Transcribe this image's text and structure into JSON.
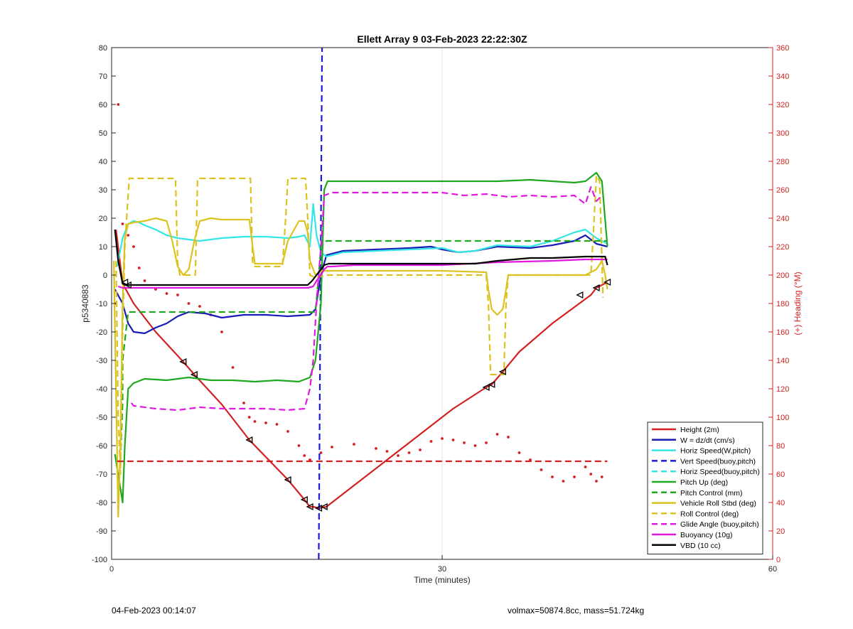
{
  "chart_data": {
    "type": "line",
    "title": "Ellett Array 9 03-Feb-2023 22:22:30Z",
    "xlabel": "Time (minutes)",
    "ylabel": "p5340883",
    "y2label": "(+) Heading (°M)",
    "xlim": [
      0,
      60
    ],
    "ylim": [
      -100,
      80
    ],
    "y2lim": [
      0,
      360
    ],
    "xticks": [
      "0",
      "30",
      "60"
    ],
    "yticks": [
      "-100",
      "-90",
      "-80",
      "-70",
      "-60",
      "-50",
      "-40",
      "-30",
      "-20",
      "-10",
      "0",
      "10",
      "20",
      "30",
      "40",
      "50",
      "60",
      "70",
      "80"
    ],
    "y2ticks": [
      "0",
      "20",
      "40",
      "60",
      "80",
      "100",
      "120",
      "140",
      "160",
      "180",
      "200",
      "220",
      "240",
      "260",
      "280",
      "300",
      "320",
      "340",
      "360"
    ],
    "grid": true,
    "legend_position": "bottom-right",
    "series": [
      {
        "name": "Height (2m)",
        "color": "#d42020",
        "style": "solid",
        "axis": "left",
        "x": [
          0.4,
          1.0,
          2.0,
          4.0,
          6.5,
          7.5,
          10.0,
          12.5,
          14.0,
          16.0,
          17.5,
          18.0,
          18.3,
          18.8,
          19.5,
          22.0,
          25.0,
          28.0,
          31.0,
          34.0,
          34.5,
          35.5,
          37.0,
          40.0,
          43.5,
          44.0,
          45.0
        ],
        "y": [
          16.0,
          -3.0,
          -10.0,
          -20.0,
          -30.5,
          -35.0,
          -45.5,
          -58.0,
          -64.0,
          -72.0,
          -79.0,
          -81.5,
          -81.5,
          -82.0,
          -81.5,
          -74.0,
          -65.0,
          -56.0,
          -47.0,
          -39.5,
          -38.5,
          -34.0,
          -27.0,
          -17.0,
          -7.0,
          -4.5,
          -2.5
        ]
      },
      {
        "name": "W = dz/dt (cm/s)",
        "color": "#1a1ab8",
        "style": "solid",
        "axis": "left",
        "x": [
          0.3,
          1.0,
          1.5,
          2.0,
          3.0,
          4.0,
          5.0,
          6.0,
          7.0,
          8.5,
          10.0,
          12.0,
          14.0,
          16.0,
          18.0,
          18.5,
          19.0,
          19.5,
          21.0,
          24.0,
          27.0,
          29.0,
          30.0,
          31.5,
          33.0,
          35.0,
          38.0,
          40.0,
          42.0,
          43.0,
          44.0,
          45.0
        ],
        "y": [
          -5.0,
          -10.0,
          -17.0,
          -20.0,
          -20.5,
          -18.5,
          -17.0,
          -14.5,
          -13.0,
          -13.5,
          -15.0,
          -14.0,
          -14.0,
          -14.5,
          -14.0,
          -12.0,
          0.0,
          7.0,
          8.5,
          9.0,
          9.5,
          10.0,
          9.0,
          8.0,
          8.5,
          10.0,
          9.5,
          10.5,
          12.0,
          14.0,
          11.0,
          10.0
        ]
      },
      {
        "name": "Horiz Speed(W,pitch)",
        "color": "#33e5e5",
        "style": "solid",
        "axis": "left",
        "x": [
          0.5,
          1.0,
          1.5,
          2.0,
          2.5,
          3.0,
          4.0,
          5.0,
          6.0,
          7.0,
          8.0,
          10.0,
          12.0,
          14.0,
          16.0,
          17.0,
          17.5,
          18.0,
          18.3,
          18.6,
          19.0,
          19.5,
          21.0,
          24.0,
          27.0,
          30.0,
          31.5,
          33.0,
          35.0,
          38.0,
          40.0,
          42.0,
          43.0,
          44.0,
          45.0
        ],
        "y": [
          3.0,
          13.0,
          18.0,
          19.0,
          18.5,
          17.5,
          16.0,
          14.0,
          13.0,
          12.5,
          12.0,
          13.0,
          13.5,
          13.5,
          13.0,
          13.5,
          14.0,
          10.0,
          25.0,
          14.0,
          8.0,
          6.5,
          8.0,
          8.5,
          9.0,
          9.5,
          8.0,
          8.5,
          10.5,
          10.0,
          12.0,
          15.0,
          16.0,
          13.0,
          11.0
        ]
      },
      {
        "name": "Vert Speed(buoy,pitch)",
        "color": "#1a1ad8",
        "style": "dashed",
        "axis": "left",
        "x": [
          18.8,
          19.1
        ],
        "y": [
          -100.0,
          80.0
        ]
      },
      {
        "name": "Horiz Speed(buoy,pitch)",
        "color": "#33e5e5",
        "style": "dashed",
        "axis": "left",
        "x": [],
        "y": []
      },
      {
        "name": "Pitch Up (deg)",
        "color": "#1fa81f",
        "style": "solid",
        "axis": "left",
        "x": [
          0.3,
          0.8,
          1.0,
          1.2,
          1.5,
          2.0,
          3.0,
          5.0,
          7.0,
          9.0,
          11.0,
          13.0,
          15.0,
          17.0,
          18.0,
          18.5,
          19.0,
          19.3,
          19.6,
          21.0,
          25.0,
          30.0,
          35.0,
          38.0,
          40.0,
          42.0,
          43.0,
          44.0,
          44.5,
          45.0
        ],
        "y": [
          -63.0,
          -75.0,
          -80.0,
          -60.0,
          -40.0,
          -38.0,
          -36.5,
          -37.0,
          -36.0,
          -37.0,
          -37.0,
          -37.5,
          -37.0,
          -37.5,
          -36.0,
          -30.0,
          -10.0,
          30.0,
          33.0,
          33.0,
          33.0,
          33.0,
          33.0,
          33.5,
          33.0,
          32.5,
          33.0,
          36.0,
          33.0,
          10.0
        ]
      },
      {
        "name": "Pitch Control (mm)",
        "color": "#1fa81f",
        "style": "dashed",
        "axis": "left",
        "x": [
          0.8,
          1.0,
          1.0,
          1.5,
          10.0,
          18.0,
          18.5,
          18.8,
          19.0,
          19.5,
          30.0,
          44.5,
          45.0
        ],
        "y": [
          -65.0,
          -45.0,
          -30.0,
          -13.0,
          -13.0,
          -13.0,
          -13.0,
          0.0,
          10.0,
          12.0,
          12.0,
          12.0,
          12.0
        ]
      },
      {
        "name": "Vehicle Roll Stbd (deg)",
        "color": "#dcc21f",
        "style": "solid",
        "axis": "left",
        "x": [
          0.2,
          0.4,
          0.6,
          0.8,
          1.0,
          1.2,
          1.5,
          2.0,
          3.0,
          4.0,
          5.0,
          5.5,
          6.0,
          6.5,
          7.0,
          7.5,
          8.0,
          9.0,
          10.0,
          12.5,
          12.8,
          13.0,
          15.0,
          15.5,
          16.0,
          17.0,
          17.5,
          17.8,
          18.0,
          18.5,
          19.0,
          21.0,
          25.0,
          30.0,
          34.0,
          34.2,
          34.5,
          35.0,
          35.5,
          35.8,
          36.0,
          38.0,
          40.0,
          43.0,
          44.0,
          44.5,
          44.8,
          45.0
        ],
        "y": [
          5.0,
          -40.0,
          -85.0,
          -60.0,
          -10.0,
          13.0,
          18.0,
          18.5,
          19.0,
          20.0,
          19.0,
          12.0,
          3.0,
          0.0,
          2.0,
          12.0,
          19.0,
          20.0,
          19.5,
          19.5,
          10.0,
          4.0,
          4.0,
          4.0,
          12.0,
          19.0,
          19.0,
          15.0,
          5.0,
          0.0,
          1.5,
          1.5,
          1.5,
          1.5,
          1.0,
          -5.0,
          -12.0,
          -14.0,
          -12.0,
          -5.0,
          0.0,
          0.0,
          0.0,
          0.0,
          2.0,
          5.0,
          0.0,
          -5.0
        ]
      },
      {
        "name": "Roll Control (deg)",
        "color": "#dcc21f",
        "style": "dashed",
        "axis": "left",
        "x": [
          0.4,
          0.6,
          0.8,
          1.0,
          1.2,
          1.6,
          2.2,
          4.0,
          5.8,
          6.0,
          6.2,
          7.0,
          7.6,
          7.8,
          10.0,
          12.6,
          12.8,
          13.0,
          15.5,
          15.8,
          16.0,
          17.0,
          17.6,
          17.8,
          18.0,
          18.5,
          19.5,
          30.0,
          34.0,
          34.2,
          34.4,
          35.6,
          35.8,
          36.0,
          43.5,
          43.8,
          44.0,
          44.3,
          44.6
        ],
        "y": [
          5.0,
          -50.0,
          -70.0,
          -20.0,
          10.0,
          34.0,
          34.0,
          34.0,
          34.0,
          4.0,
          0.0,
          0.0,
          0.0,
          34.0,
          34.0,
          34.0,
          4.0,
          3.0,
          3.0,
          20.0,
          34.0,
          34.0,
          34.0,
          20.0,
          0.0,
          -1.0,
          0.0,
          0.0,
          0.0,
          -10.0,
          -35.0,
          -35.0,
          -10.0,
          0.0,
          0.0,
          20.0,
          35.0,
          33.0,
          -8.0
        ]
      },
      {
        "name": "Glide Angle (buoy,pitch)",
        "color": "#e018e0",
        "style": "dashed",
        "axis": "left",
        "x": [
          1.8,
          2.0,
          4.0,
          6.0,
          8.0,
          10.0,
          12.0,
          14.0,
          16.0,
          17.5,
          18.0,
          18.3,
          18.6,
          19.0,
          19.3,
          20.0,
          25.0,
          30.0,
          32.0,
          34.0,
          36.0,
          38.0,
          40.0,
          42.0,
          43.0,
          43.5,
          44.0,
          44.5
        ],
        "y": [
          -45.0,
          -46.0,
          -47.0,
          -47.5,
          -46.5,
          -47.0,
          -47.0,
          -47.0,
          -47.5,
          -47.0,
          -40.0,
          -30.0,
          -10.0,
          10.0,
          28.0,
          29.0,
          29.0,
          29.0,
          28.0,
          28.5,
          27.5,
          28.0,
          27.5,
          28.0,
          25.0,
          31.0,
          26.0,
          28.0
        ]
      },
      {
        "name": "Buoyancy (10g)",
        "color": "#e018e0",
        "style": "solid",
        "axis": "left",
        "x": [
          0.6,
          1.0,
          5.0,
          10.0,
          15.0,
          17.0,
          17.8,
          18.3,
          18.6,
          19.0,
          19.3,
          19.6,
          20.0,
          22.0,
          25.0,
          30.0,
          35.0,
          40.0,
          43.0,
          45.0
        ],
        "y": [
          -4.0,
          -4.5,
          -4.5,
          -4.5,
          -4.5,
          -4.5,
          -4.5,
          -4.0,
          -2.0,
          0.0,
          2.0,
          3.0,
          3.0,
          3.5,
          3.5,
          3.5,
          4.5,
          5.0,
          5.5,
          5.5
        ]
      },
      {
        "name": "VBD (10 cc)",
        "color": "#000000",
        "style": "solid",
        "axis": "left",
        "x": [
          0.3,
          0.6,
          1.0,
          1.2,
          5.0,
          10.0,
          15.0,
          17.0,
          17.8,
          18.2,
          18.6,
          19.0,
          19.3,
          19.7,
          20.0,
          25.0,
          30.0,
          33.0,
          35.0,
          38.0,
          40.0,
          43.0,
          44.8,
          45.0
        ],
        "y": [
          16.0,
          5.0,
          -3.0,
          -3.5,
          -3.5,
          -3.5,
          -3.5,
          -3.5,
          -3.5,
          -2.0,
          0.0,
          2.0,
          3.5,
          4.0,
          4.0,
          4.0,
          4.0,
          4.0,
          5.0,
          6.0,
          6.0,
          6.5,
          6.5,
          3.5
        ]
      },
      {
        "name": "",
        "color": "#d42020",
        "style": "dotted",
        "axis": "right",
        "x": [
          0.4,
          0.6,
          1.0,
          1.5,
          2.0,
          2.5,
          3.0,
          4.0,
          5.0,
          6.0,
          7.0,
          8.0,
          9.0,
          10.0,
          11.0,
          12.0,
          12.5,
          13.0,
          14.0,
          15.0,
          16.0,
          17.0,
          17.5,
          18.0,
          19.0,
          20.0,
          22.0,
          24.0,
          25.0,
          26.0,
          27.0,
          28.0,
          29.0,
          30.0,
          31.0,
          32.0,
          33.0,
          34.0,
          35.0,
          36.0,
          37.0,
          38.0,
          39.0,
          40.0,
          41.0,
          42.0,
          43.0,
          43.5,
          44.0,
          44.5
        ],
        "y": [
          180.0,
          320.0,
          236.0,
          228.0,
          220.0,
          205.0,
          196.0,
          190.0,
          187.0,
          186.0,
          180.0,
          178.0,
          172.0,
          160.0,
          135.0,
          110.0,
          100.0,
          97.0,
          96.0,
          95.0,
          90.0,
          80.0,
          73.0,
          70.0,
          75.0,
          79.0,
          81.0,
          78.0,
          76.0,
          73.0,
          75.0,
          77.0,
          83.0,
          85.0,
          84.0,
          82.0,
          80.0,
          82.0,
          88.0,
          86.0,
          75.0,
          70.0,
          63.0,
          58.0,
          55.0,
          58.0,
          65.0,
          60.0,
          55.0,
          58.0
        ]
      },
      {
        "name": "",
        "color": "#d42020",
        "style": "dashed",
        "axis": "right",
        "x": [
          0.5,
          45.0
        ],
        "y": [
          69.0,
          69.0
        ]
      }
    ],
    "markers": {
      "color": "#000000",
      "x": [
        1.2,
        1.5,
        6.5,
        7.5,
        12.5,
        16.0,
        17.5,
        18.0,
        18.8,
        19.3,
        34.0,
        34.5,
        35.5,
        42.5,
        44.0,
        45.0
      ],
      "y": [
        -2.5,
        -3.5,
        -30.5,
        -35.0,
        -58.0,
        -72.0,
        -79.0,
        -81.5,
        -82.0,
        -81.5,
        -39.5,
        -38.5,
        -34.0,
        -7.0,
        -4.5,
        -2.5
      ]
    }
  },
  "footer": {
    "timestamp": "04-Feb-2023 00:14:07",
    "vol_mass": "volmax=50874.8cc, mass=51.724kg"
  }
}
